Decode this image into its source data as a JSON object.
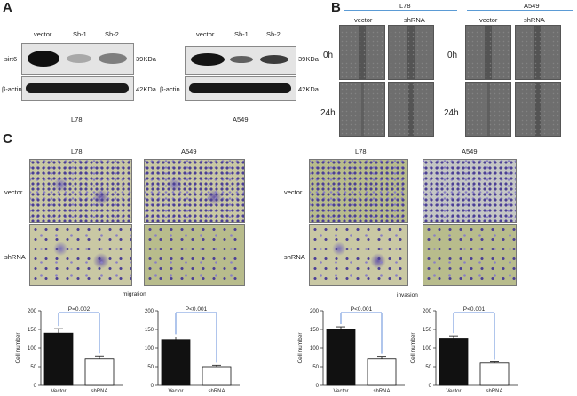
{
  "panelA": {
    "letter": "A",
    "left": {
      "lanes": [
        "vector",
        "Sh-1",
        "Sh-2"
      ],
      "rows": [
        {
          "name": "sirt6",
          "mw": "39KDa"
        },
        {
          "name": "β-actin",
          "mw": "42KDa"
        }
      ],
      "cell_line": "L78"
    },
    "right": {
      "lanes": [
        "vector",
        "Sh-1",
        "Sh-2"
      ],
      "rows": [
        {
          "name": "sirt6",
          "mw": "39KDa"
        },
        {
          "name": "β-actin",
          "mw": "42KDa"
        }
      ],
      "cell_line": "A549"
    }
  },
  "panelB": {
    "letter": "B",
    "groups": [
      {
        "cell_line": "L78",
        "cols": [
          "vector",
          "shRNA"
        ]
      },
      {
        "cell_line": "A549",
        "cols": [
          "vector",
          "shRNA"
        ]
      }
    ],
    "times": [
      "0h",
      "24h"
    ]
  },
  "panelC": {
    "letter": "C",
    "migration": {
      "cell_lines": [
        "L78",
        "A549"
      ],
      "rows": [
        "vector",
        "shRNA"
      ],
      "label": "migration"
    },
    "invasion": {
      "cell_lines": [
        "L78",
        "A549"
      ],
      "rows": [
        "vector",
        "shRNA"
      ],
      "label": "invasion"
    }
  },
  "colors": {
    "bar_vector": "#111111",
    "bar_shrna": "#ffffff",
    "accent_line": "#5b9bd5",
    "bracket": "#3a6fd0"
  },
  "chart_data": [
    {
      "type": "bar",
      "title": "",
      "ylabel": "Cell number",
      "xlabel": "",
      "categories": [
        "Vector",
        "shRNA"
      ],
      "values": [
        140,
        72
      ],
      "errors": [
        12,
        6
      ],
      "ylim": [
        0,
        200
      ],
      "yticks": [
        0,
        50,
        100,
        150,
        200
      ],
      "annotation": "P=0.002"
    },
    {
      "type": "bar",
      "title": "",
      "ylabel": "",
      "xlabel": "",
      "categories": [
        "Vector",
        "shRNA"
      ],
      "values": [
        122,
        50
      ],
      "errors": [
        8,
        4
      ],
      "ylim": [
        0,
        200
      ],
      "yticks": [
        0,
        50,
        100,
        150,
        200
      ],
      "annotation": "P<0.001"
    },
    {
      "type": "bar",
      "title": "",
      "ylabel": "Cell number",
      "xlabel": "",
      "categories": [
        "Vector",
        "shRNA"
      ],
      "values": [
        150,
        72
      ],
      "errors": [
        7,
        5
      ],
      "ylim": [
        0,
        200
      ],
      "yticks": [
        0,
        50,
        100,
        150,
        200
      ],
      "annotation": "P<0.001"
    },
    {
      "type": "bar",
      "title": "",
      "ylabel": "Cell number",
      "xlabel": "",
      "categories": [
        "Vector",
        "shRNA"
      ],
      "values": [
        125,
        60
      ],
      "errors": [
        8,
        3
      ],
      "ylim": [
        0,
        200
      ],
      "yticks": [
        0,
        50,
        100,
        150,
        200
      ],
      "annotation": "P<0.001"
    }
  ]
}
